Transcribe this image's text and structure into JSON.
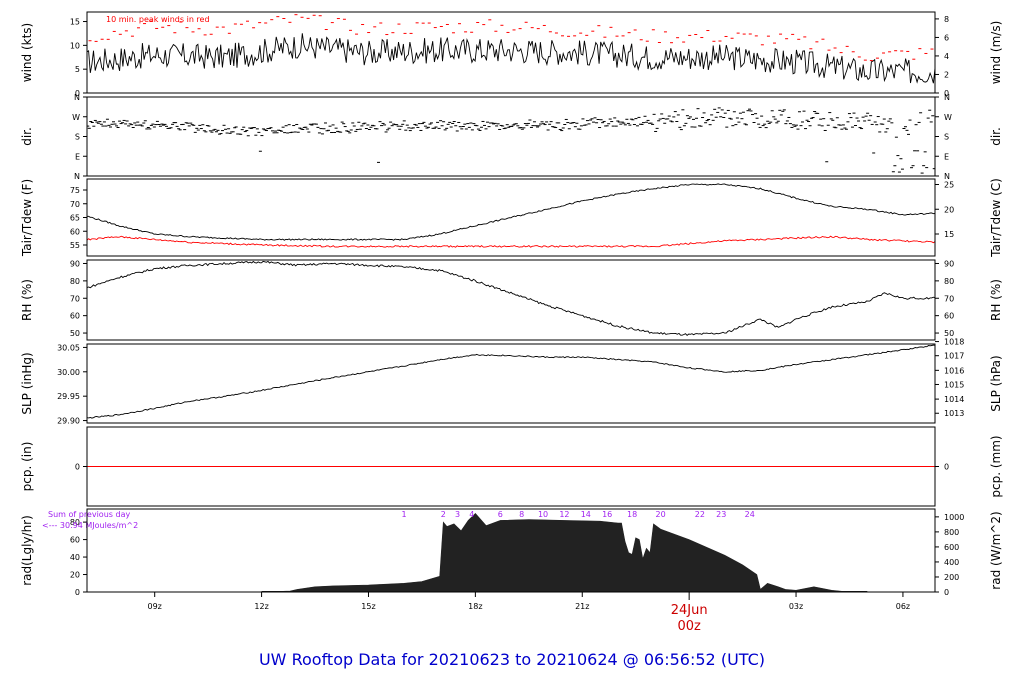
{
  "title": "UW Rooftop Data for 20210623  to  20210624 @ 06:56:52  (UTC)",
  "colors": {
    "series": "#000000",
    "peak": "#ff0000",
    "dew": "#ff0000",
    "pcp": "#ff0000",
    "annot": "#a020f0",
    "title": "#0000cc",
    "date": "#cc0000"
  },
  "x_axis": {
    "tick_labels": [
      "09z",
      "12z",
      "15z",
      "18z",
      "21z",
      "03z",
      "06z"
    ],
    "tick_hours": [
      9,
      12,
      15,
      18,
      21,
      27,
      30
    ],
    "range_hours": [
      7.1,
      30.9
    ],
    "date_label": "24Jun",
    "date_sub": "00z",
    "date_hour": 24
  },
  "chart_data": [
    {
      "type": "line",
      "ylabel": "wind (kts)",
      "ylabel_right": "wind (m/s)",
      "ylim": [
        0,
        17
      ],
      "yticks": [
        "0",
        "5",
        "10",
        "15"
      ],
      "ytick_values": [
        0,
        5,
        10,
        15
      ],
      "yticks_right": [
        "0",
        "2",
        "4",
        "6",
        "8"
      ],
      "ytick_values_right": [
        0,
        3.89,
        7.78,
        11.66,
        15.55
      ],
      "annotation": "10 min. peak winds in red",
      "series": [
        {
          "role": "wind",
          "x": [
            7.1,
            9,
            11,
            13,
            15,
            17,
            19,
            21,
            23,
            25,
            27,
            29,
            30.9
          ],
          "y": [
            6.5,
            8,
            7.5,
            10,
            8.5,
            9,
            9,
            8.5,
            7.5,
            7.5,
            6.5,
            4.5,
            4.5
          ]
        },
        {
          "role": "peak",
          "x": [
            7.1,
            9,
            11,
            13,
            15,
            17,
            19,
            21,
            23,
            25,
            27,
            29,
            30.9
          ],
          "y": [
            12,
            14,
            13.5,
            15.5,
            13.5,
            14,
            14,
            13,
            12,
            12,
            11,
            8,
            8.5
          ]
        }
      ]
    },
    {
      "type": "scatter",
      "ylabel": "dir.",
      "ylabel_right": "dir.",
      "ylim": [
        0,
        360
      ],
      "yticks": [
        "N",
        "E",
        "S",
        "W",
        "N"
      ],
      "ytick_values": [
        0,
        90,
        180,
        270,
        360
      ],
      "yticks_right": [
        "N",
        "E",
        "S",
        "W",
        "N"
      ],
      "ytick_values_right": [
        0,
        90,
        180,
        270,
        360
      ],
      "series": [
        {
          "role": "dir",
          "x": [
            7.1,
            9,
            11,
            12,
            13,
            15,
            17,
            19,
            21,
            23,
            25,
            27,
            29,
            30,
            30.9
          ],
          "y": [
            240,
            235,
            210,
            200,
            215,
            225,
            230,
            225,
            235,
            250,
            270,
            260,
            250,
            200,
            300
          ]
        }
      ]
    },
    {
      "type": "line",
      "ylabel": "Tair/Tdew (F)",
      "ylabel_right": "Tair/Tdew (C)",
      "ylim": [
        51,
        79
      ],
      "yticks": [
        "55",
        "60",
        "65",
        "70",
        "75"
      ],
      "ytick_values": [
        55,
        60,
        65,
        70,
        75
      ],
      "yticks_right": [
        "15",
        "20",
        "25"
      ],
      "ytick_values_right": [
        59,
        68,
        77
      ],
      "series": [
        {
          "role": "tair",
          "x": [
            7.1,
            8,
            9,
            10,
            12,
            14,
            16,
            17,
            18,
            19,
            20,
            21,
            22,
            23,
            24,
            25,
            26,
            27,
            28,
            29,
            30,
            30.9
          ],
          "y": [
            65.5,
            62,
            59,
            58,
            57,
            57,
            57,
            59,
            62,
            65,
            68,
            71,
            73.5,
            75.5,
            77,
            77,
            75.5,
            72,
            69,
            68,
            66,
            66.5
          ]
        },
        {
          "role": "tdew",
          "x": [
            7.1,
            8,
            10,
            12,
            14,
            16,
            18,
            20,
            22,
            23,
            24,
            25,
            26,
            27,
            28,
            29,
            30,
            30.9
          ],
          "y": [
            57,
            58,
            56,
            55,
            54.5,
            54.5,
            54.5,
            54.5,
            54.5,
            54.5,
            55.5,
            56.5,
            57,
            57.5,
            58,
            57,
            56.5,
            56
          ]
        }
      ]
    },
    {
      "type": "line",
      "ylabel": "RH (%)",
      "ylabel_right": "RH (%)",
      "ylim": [
        46,
        92
      ],
      "yticks": [
        "50",
        "60",
        "70",
        "80",
        "90"
      ],
      "ytick_values": [
        50,
        60,
        70,
        80,
        90
      ],
      "yticks_right": [
        "50",
        "60",
        "70",
        "80",
        "90"
      ],
      "ytick_values_right": [
        50,
        60,
        70,
        80,
        90
      ],
      "series": [
        {
          "role": "rh",
          "x": [
            7.1,
            8,
            9,
            10,
            12,
            13,
            14,
            15,
            16,
            17,
            18,
            19,
            20,
            21,
            22,
            23,
            24,
            25,
            26,
            26.5,
            27,
            28,
            29,
            29.5,
            30,
            30.9
          ],
          "y": [
            76,
            82,
            87,
            89,
            91,
            89,
            90,
            89,
            88,
            86,
            80,
            73,
            66,
            60,
            54,
            50,
            49,
            50,
            58,
            53,
            58,
            65,
            68,
            73,
            70,
            70
          ]
        }
      ]
    },
    {
      "type": "line",
      "ylabel": "SLP (inHg)",
      "ylabel_right": "SLP (hPa)",
      "ylim": [
        29.895,
        30.057
      ],
      "yticks": [
        "29.90",
        "29.95",
        "30.00",
        "30.05"
      ],
      "ytick_values": [
        29.9,
        29.95,
        30.0,
        30.05
      ],
      "yticks_right": [
        "1013",
        "1014",
        "1015",
        "1016",
        "1017",
        "1018"
      ],
      "ytick_values_right": [
        29.915,
        29.944,
        29.974,
        30.003,
        30.033,
        30.062
      ],
      "series": [
        {
          "role": "slp",
          "x": [
            7.1,
            8,
            9,
            10,
            11,
            12,
            13,
            14,
            15,
            16,
            17,
            18,
            19,
            20,
            21,
            22,
            23,
            24,
            25,
            26,
            27,
            28,
            29,
            30,
            30.9
          ],
          "y": [
            29.905,
            29.912,
            29.925,
            29.94,
            29.95,
            29.962,
            29.975,
            29.988,
            30.0,
            30.012,
            30.025,
            30.035,
            30.033,
            30.03,
            30.03,
            30.025,
            30.02,
            30.008,
            30.0,
            30.003,
            30.015,
            30.025,
            30.035,
            30.045,
            30.055
          ]
        }
      ]
    },
    {
      "type": "line",
      "ylabel": "pcp. (in)",
      "ylabel_right": "pcp. (mm)",
      "ylim": [
        -1,
        1
      ],
      "yticks": [
        "0"
      ],
      "ytick_values": [
        0
      ],
      "yticks_right": [
        "0"
      ],
      "ytick_values_right": [
        0
      ],
      "series": [
        {
          "role": "pcp",
          "x": [
            7.1,
            30.9
          ],
          "y": [
            0,
            0
          ]
        }
      ]
    },
    {
      "type": "area",
      "ylabel": "rad(Lgly/hr)",
      "ylabel_right": "rad (W/m^2)",
      "ylim": [
        0,
        95
      ],
      "yticks": [
        "0",
        "20",
        "40",
        "60",
        "80"
      ],
      "ytick_values": [
        0,
        20,
        40,
        60,
        80
      ],
      "yticks_right": [
        "0",
        "200",
        "400",
        "600",
        "800",
        "1000"
      ],
      "ytick_values_right": [
        0,
        17.2,
        34.4,
        51.6,
        68.8,
        86
      ],
      "annotation_1": "Sum of previous day",
      "annotation_2": "<--- 30.94 MJoules/m^2",
      "hour_labels": [
        "1",
        "2",
        "3",
        "4",
        "6",
        "8",
        "10",
        "12",
        "14",
        "16",
        "18",
        "20",
        "22",
        "23",
        "24"
      ],
      "hour_label_x": [
        16.0,
        17.1,
        17.5,
        17.9,
        18.7,
        19.3,
        19.9,
        20.5,
        21.1,
        21.7,
        22.4,
        23.2,
        24.3,
        24.9,
        25.7
      ],
      "series": [
        {
          "role": "rad",
          "x": [
            12,
            12.8,
            13,
            13.5,
            14,
            15,
            16,
            16.5,
            17,
            17.1,
            17.2,
            17.4,
            17.6,
            17.8,
            18,
            18.3,
            18.7,
            19.5,
            20.5,
            21.5,
            22,
            22.1,
            22.2,
            22.3,
            22.4,
            22.5,
            22.6,
            22.7,
            22.8,
            22.9,
            23,
            23.2,
            24,
            25,
            25.5,
            25.9,
            26,
            26.2,
            26.5,
            26.7,
            27,
            27.5,
            28,
            28.5,
            29
          ],
          "y": [
            0,
            1,
            3,
            6,
            7,
            8,
            10,
            12,
            18,
            80,
            75,
            78,
            70,
            82,
            90,
            76,
            82,
            83,
            82,
            81,
            79,
            79,
            58,
            45,
            43,
            62,
            60,
            38,
            50,
            45,
            78,
            72,
            60,
            42,
            31,
            20,
            3,
            10,
            6,
            3,
            2,
            6,
            2,
            0,
            0
          ]
        }
      ]
    }
  ]
}
